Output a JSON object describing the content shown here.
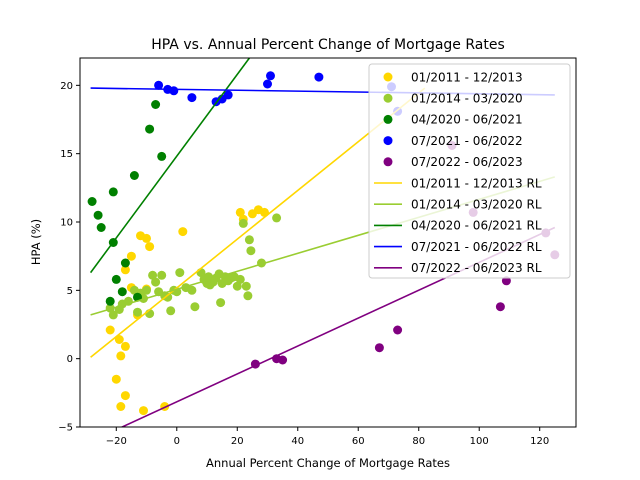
{
  "chart_data": {
    "type": "scatter",
    "title": "HPA vs. Annual Percent Change of Mortgage Rates",
    "xlabel": "Annual Percent Change of Mortgage Rates",
    "ylabel": "HPA (%)",
    "xlim": [
      -32,
      132
    ],
    "ylim": [
      -5,
      22
    ],
    "xticks": [
      -20,
      0,
      20,
      40,
      60,
      80,
      100,
      120
    ],
    "yticks": [
      -5,
      0,
      5,
      10,
      15,
      20
    ],
    "legend_position": "upper-right",
    "grid": false,
    "series": [
      {
        "name": "01/2011 - 12/2013",
        "color": "#ffd700",
        "points": [
          [
            -22,
            2.1
          ],
          [
            -19,
            1.4
          ],
          [
            -18.5,
            0.2
          ],
          [
            -17,
            0.9
          ],
          [
            -20,
            -1.5
          ],
          [
            -17,
            -2.7
          ],
          [
            -18.5,
            -3.5
          ],
          [
            -11,
            -3.8
          ],
          [
            -4,
            -3.5
          ],
          [
            -17,
            6.5
          ],
          [
            -15,
            7.5
          ],
          [
            -12,
            9.0
          ],
          [
            -10,
            8.8
          ],
          [
            -9,
            8.2
          ],
          [
            2,
            9.3
          ],
          [
            -15,
            5.2
          ],
          [
            -13,
            3.2
          ],
          [
            -10,
            5.1
          ],
          [
            21,
            10.7
          ],
          [
            22,
            10.2
          ],
          [
            25,
            10.6
          ],
          [
            27,
            10.9
          ],
          [
            29,
            10.7
          ]
        ]
      },
      {
        "name": "01/2014 - 03/2020",
        "color": "#9acd32",
        "points": [
          [
            -22,
            3.7
          ],
          [
            -21,
            3.2
          ],
          [
            -19,
            3.6
          ],
          [
            -18,
            4.0
          ],
          [
            -16,
            4.2
          ],
          [
            -14,
            5.0
          ],
          [
            -13,
            3.4
          ],
          [
            -12,
            4.8
          ],
          [
            -11,
            4.4
          ],
          [
            -10,
            5.0
          ],
          [
            -9,
            3.3
          ],
          [
            -8,
            6.1
          ],
          [
            -7,
            5.6
          ],
          [
            -6,
            4.9
          ],
          [
            -5,
            6.1
          ],
          [
            -4,
            4.6
          ],
          [
            -3,
            4.5
          ],
          [
            -2,
            3.5
          ],
          [
            -1,
            5.0
          ],
          [
            0,
            4.9
          ],
          [
            1,
            6.3
          ],
          [
            3,
            5.2
          ],
          [
            5,
            5.0
          ],
          [
            6,
            3.8
          ],
          [
            8,
            6.3
          ],
          [
            9,
            5.8
          ],
          [
            10,
            5.5
          ],
          [
            10.5,
            6.0
          ],
          [
            11,
            5.4
          ],
          [
            12,
            5.6
          ],
          [
            13,
            5.9
          ],
          [
            14,
            6.2
          ],
          [
            14.5,
            4.1
          ],
          [
            15,
            5.5
          ],
          [
            16,
            6.0
          ],
          [
            17,
            5.7
          ],
          [
            18,
            5.9
          ],
          [
            19,
            6.0
          ],
          [
            20,
            5.3
          ],
          [
            21,
            5.8
          ],
          [
            22,
            9.9
          ],
          [
            23,
            5.3
          ],
          [
            23.5,
            4.6
          ],
          [
            24,
            8.7
          ],
          [
            24.5,
            7.9
          ],
          [
            28,
            7.0
          ],
          [
            33,
            10.3
          ]
        ]
      },
      {
        "name": "04/2020 - 06/2021",
        "color": "#008000",
        "points": [
          [
            -28,
            11.5
          ],
          [
            -26,
            10.5
          ],
          [
            -25,
            9.6
          ],
          [
            -21,
            8.5
          ],
          [
            -20,
            5.8
          ],
          [
            -18,
            4.9
          ],
          [
            -17,
            7.0
          ],
          [
            -14,
            13.4
          ],
          [
            -13,
            4.5
          ],
          [
            -9,
            16.8
          ],
          [
            -7,
            18.6
          ],
          [
            -5,
            14.8
          ],
          [
            -21,
            12.2
          ],
          [
            -22,
            4.2
          ]
        ]
      },
      {
        "name": "07/2021 - 06/2022",
        "color": "#0000ff",
        "points": [
          [
            -6,
            20.0
          ],
          [
            -3,
            19.7
          ],
          [
            -1,
            19.6
          ],
          [
            5,
            19.1
          ],
          [
            13,
            18.8
          ],
          [
            15,
            19.0
          ],
          [
            17,
            19.3
          ],
          [
            30,
            20.1
          ],
          [
            31,
            20.7
          ],
          [
            47,
            20.6
          ],
          [
            71,
            19.9
          ],
          [
            73,
            18.1
          ]
        ]
      },
      {
        "name": "07/2022 - 06/2023",
        "color": "#800080",
        "points": [
          [
            26,
            -0.4
          ],
          [
            33,
            0.0
          ],
          [
            35,
            -0.1
          ],
          [
            67,
            0.8
          ],
          [
            73,
            2.1
          ],
          [
            91,
            15.6
          ],
          [
            98,
            10.7
          ],
          [
            107,
            3.8
          ],
          [
            109,
            5.7
          ],
          [
            122,
            9.2
          ],
          [
            125,
            7.6
          ]
        ]
      }
    ],
    "regression_lines": [
      {
        "name": "01/2011 - 12/2013 RL",
        "color": "#ffd700",
        "x": [
          -28.5,
          82
        ],
        "y": [
          0.1,
          19.8
        ]
      },
      {
        "name": "01/2014 - 03/2020 RL",
        "color": "#9acd32",
        "x": [
          -28.5,
          125
        ],
        "y": [
          3.2,
          13.3
        ]
      },
      {
        "name": "04/2020 - 06/2021 RL",
        "color": "#008000",
        "x": [
          -28.5,
          24
        ],
        "y": [
          6.3,
          22
        ]
      },
      {
        "name": "07/2021 - 06/2022 RL",
        "color": "#0000ff",
        "x": [
          -28.5,
          125
        ],
        "y": [
          19.8,
          19.3
        ]
      },
      {
        "name": "07/2022 - 06/2023 RL",
        "color": "#800080",
        "x": [
          -20,
          125
        ],
        "y": [
          -5.2,
          9.6
        ]
      }
    ]
  }
}
